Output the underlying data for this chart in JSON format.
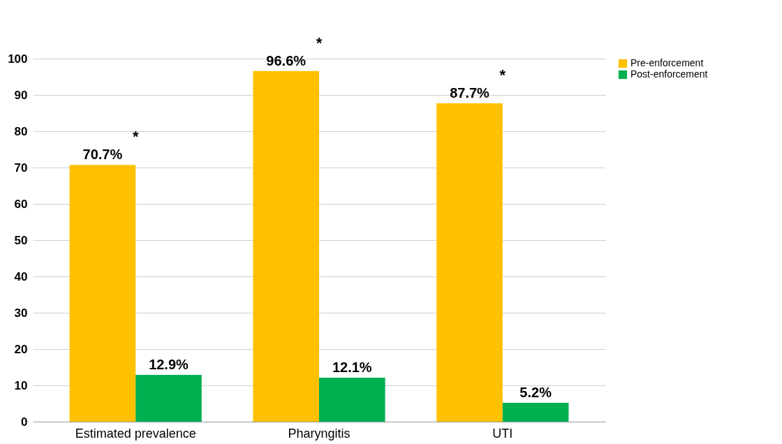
{
  "chart_data": {
    "type": "bar",
    "categories": [
      "Estimated prevalence",
      "Pharyngitis",
      "UTI"
    ],
    "series": [
      {
        "name": "Pre-enforcement",
        "color": "#ffc000",
        "values": [
          70.7,
          96.6,
          87.7
        ],
        "value_labels": [
          "70.7%",
          "96.6%",
          "87.7%"
        ]
      },
      {
        "name": "Post-enforcement",
        "color": "#00b050",
        "values": [
          12.9,
          12.1,
          5.2
        ],
        "value_labels": [
          "12.9%",
          "12.1%",
          "5.2%"
        ]
      }
    ],
    "ylim": [
      0,
      100
    ],
    "yticks": [
      0,
      10,
      20,
      30,
      40,
      50,
      60,
      70,
      80,
      90,
      100
    ],
    "grid": "y",
    "legend": "right",
    "annotations": [
      "*",
      "*",
      "*"
    ]
  }
}
